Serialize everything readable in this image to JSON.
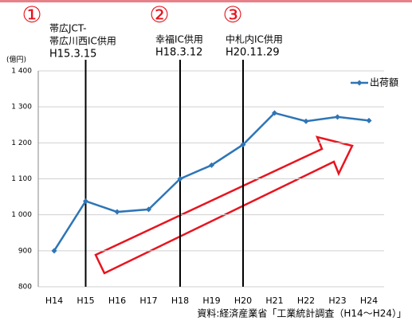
{
  "chart_data": {
    "type": "line",
    "y_unit": "(億円)",
    "categories": [
      "H14",
      "H15",
      "H16",
      "H17",
      "H18",
      "H19",
      "H20",
      "H21",
      "H22",
      "H23",
      "H24"
    ],
    "series": [
      {
        "name": "出荷額",
        "color": "#2e75b6",
        "values": [
          900,
          1038,
          1008,
          1015,
          1100,
          1138,
          1195,
          1283,
          1260,
          1272,
          1262
        ]
      }
    ],
    "ylim": [
      800,
      1400
    ],
    "yticks": [
      800,
      900,
      {
        "value": 1000,
        "label": "1 000"
      },
      {
        "value": 1100,
        "label": "1 100"
      },
      {
        "value": 1200,
        "label": "1 200"
      },
      {
        "value": 1300,
        "label": "1 300"
      },
      {
        "value": 1400,
        "label": "1 400"
      }
    ],
    "grid": true,
    "legend": "upper right",
    "annotations": [
      {
        "marker": "①",
        "lines": [
          "帯広JCT-",
          "帯広川西IC供用",
          "H15.3.15"
        ]
      },
      {
        "marker": "②",
        "lines": [
          "幸福IC供用",
          "H18.3.12"
        ]
      },
      {
        "marker": "③",
        "lines": [
          "中札内IC供用",
          "H20.11.29"
        ]
      }
    ],
    "source": "資料:経済産業省「工業統計調査（H14～H24）」"
  }
}
